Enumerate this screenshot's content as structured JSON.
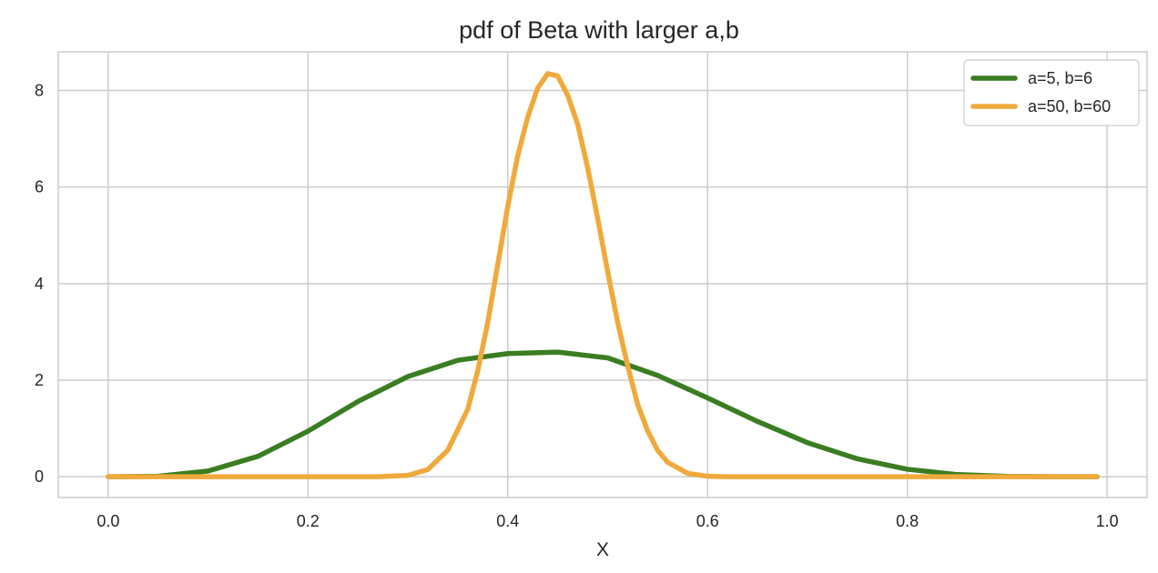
{
  "chart_data": {
    "type": "line",
    "title": "pdf of Beta with larger a,b",
    "xlabel": "X",
    "ylabel": "",
    "xlim": [
      -0.05,
      1.04
    ],
    "ylim": [
      -0.43,
      8.8
    ],
    "xticks": [
      0.0,
      0.2,
      0.4,
      0.6,
      0.8,
      1.0
    ],
    "xtick_labels": [
      "0.0",
      "0.2",
      "0.4",
      "0.6",
      "0.8",
      "1.0"
    ],
    "yticks": [
      0,
      2,
      4,
      6,
      8
    ],
    "ytick_labels": [
      "0",
      "2",
      "4",
      "6",
      "8"
    ],
    "grid": true,
    "legend_position": "top-right",
    "series": [
      {
        "name": "a=5, b=6",
        "color": "#3a7d22",
        "x": [
          0.0,
          0.05,
          0.1,
          0.15,
          0.2,
          0.25,
          0.3,
          0.35,
          0.4,
          0.45,
          0.5,
          0.55,
          0.6,
          0.65,
          0.7,
          0.75,
          0.8,
          0.85,
          0.9,
          0.95,
          0.99
        ],
        "y": [
          0.0,
          0.0098,
          0.1181,
          0.4237,
          0.9437,
          1.5581,
          2.075,
          2.4127,
          2.5514,
          2.5822,
          2.4612,
          2.0992,
          1.6329,
          1.146,
          0.7056,
          0.3708,
          0.1548,
          0.0446,
          0.0069,
          0.0003,
          0.0
        ]
      },
      {
        "name": "a=50, b=60",
        "color": "#f0a93b",
        "x": [
          0.0,
          0.27,
          0.3,
          0.32,
          0.34,
          0.36,
          0.37,
          0.38,
          0.39,
          0.4,
          0.41,
          0.42,
          0.43,
          0.44,
          0.45,
          0.46,
          0.47,
          0.48,
          0.49,
          0.5,
          0.51,
          0.52,
          0.53,
          0.54,
          0.55,
          0.56,
          0.58,
          0.6,
          0.62,
          0.65,
          0.99
        ],
        "y": [
          0.0,
          0.0,
          0.03,
          0.15,
          0.55,
          1.4,
          2.2,
          3.2,
          4.4,
          5.6,
          6.65,
          7.45,
          8.05,
          8.35,
          8.3,
          7.9,
          7.3,
          6.4,
          5.35,
          4.25,
          3.2,
          2.3,
          1.5,
          0.95,
          0.55,
          0.3,
          0.07,
          0.01,
          0.0,
          0.0,
          0.0
        ]
      }
    ]
  }
}
